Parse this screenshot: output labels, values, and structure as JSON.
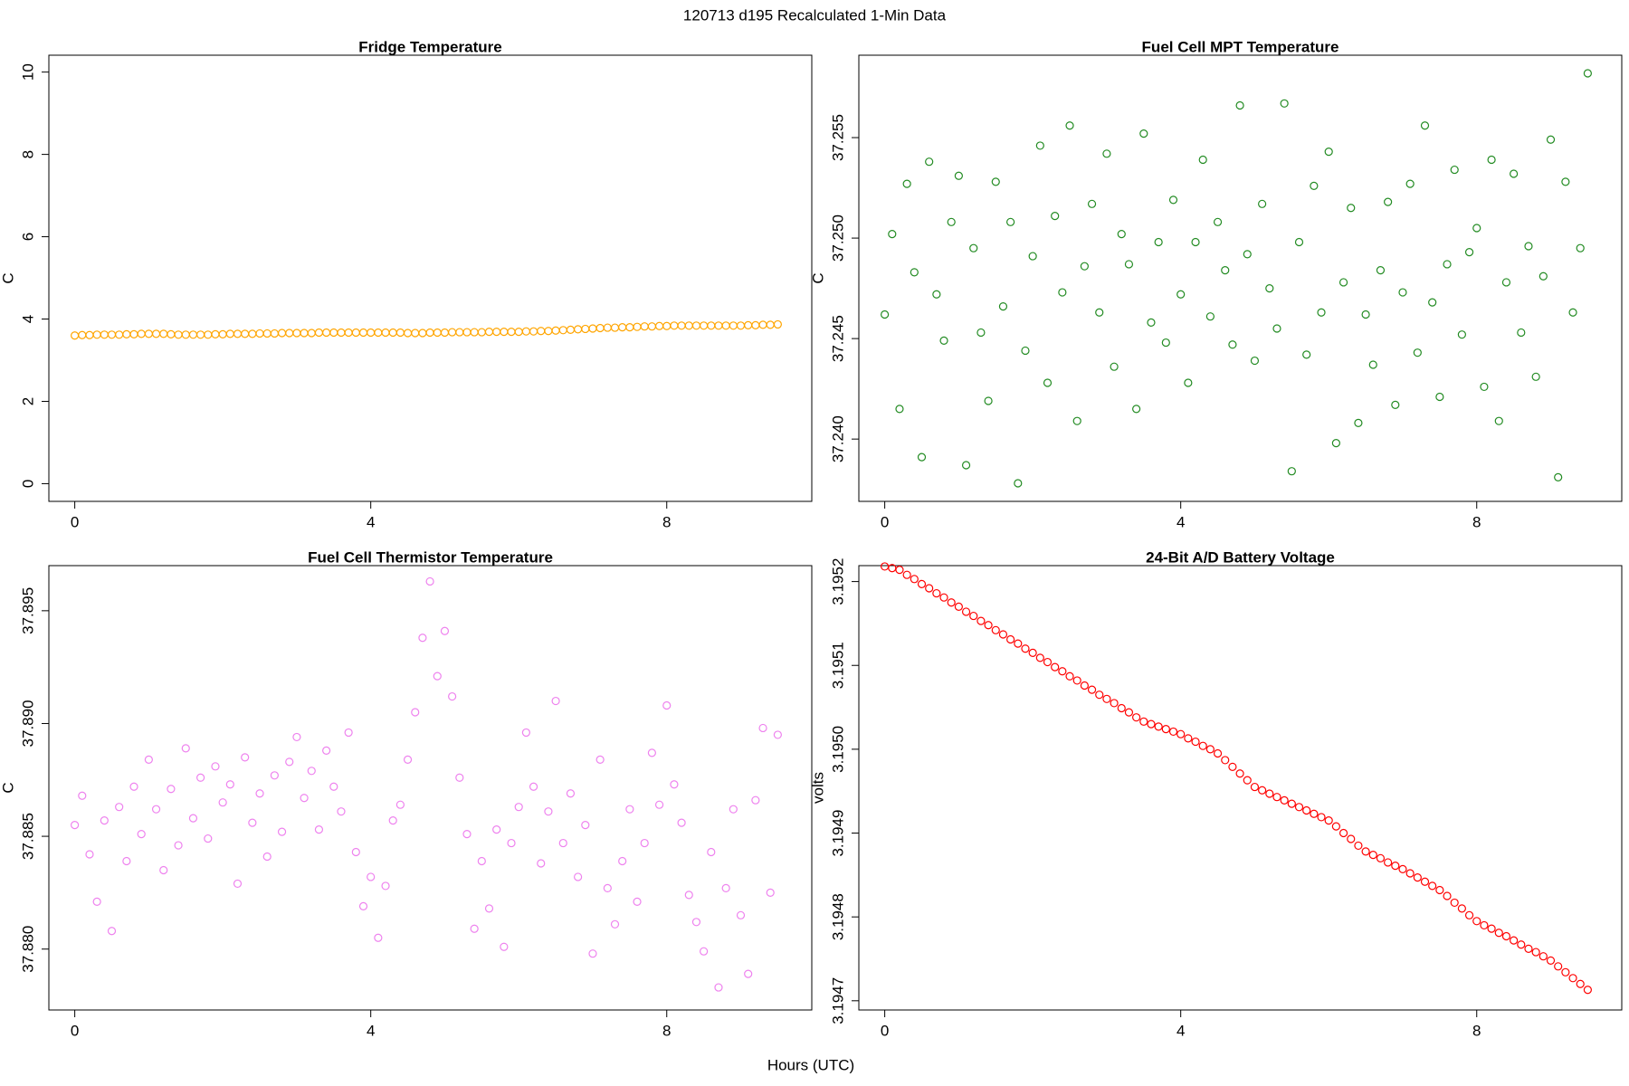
{
  "title": "120713   d195   Recalculated 1-Min Data",
  "xlabel": "Hours (UTC)",
  "chart_data": [
    {
      "type": "scatter",
      "title": "Fridge Temperature",
      "ylabel": "C",
      "color": "#FFA500",
      "xlim": [
        -0.35,
        9.96
      ],
      "ylim": [
        -0.43,
        10.41
      ],
      "xticks": [
        0,
        4,
        8
      ],
      "yticks": [
        0,
        2,
        4,
        6,
        8,
        10
      ],
      "x": [
        0,
        0.1,
        0.2,
        0.3,
        0.4,
        0.5,
        0.6,
        0.7,
        0.8,
        0.9,
        1,
        1.1,
        1.2,
        1.3,
        1.4,
        1.5,
        1.6,
        1.7,
        1.8,
        1.9,
        2,
        2.1,
        2.2,
        2.3,
        2.4,
        2.5,
        2.6,
        2.7,
        2.8,
        2.9,
        3,
        3.1,
        3.2,
        3.3,
        3.4,
        3.5,
        3.6,
        3.7,
        3.8,
        3.9,
        4,
        4.1,
        4.2,
        4.3,
        4.4,
        4.5,
        4.6,
        4.7,
        4.8,
        4.9,
        5,
        5.1,
        5.2,
        5.3,
        5.4,
        5.5,
        5.6,
        5.7,
        5.8,
        5.9,
        6,
        6.1,
        6.2,
        6.3,
        6.4,
        6.5,
        6.6,
        6.7,
        6.8,
        6.9,
        7,
        7.1,
        7.2,
        7.3,
        7.4,
        7.5,
        7.6,
        7.7,
        7.8,
        7.9,
        8,
        8.1,
        8.2,
        8.3,
        8.4,
        8.5,
        8.6,
        8.7,
        8.8,
        8.9,
        9,
        9.1,
        9.2,
        9.3,
        9.4,
        9.5
      ],
      "values": [
        3.6,
        3.61,
        3.61,
        3.62,
        3.62,
        3.62,
        3.62,
        3.63,
        3.63,
        3.64,
        3.64,
        3.64,
        3.64,
        3.63,
        3.62,
        3.62,
        3.62,
        3.62,
        3.62,
        3.63,
        3.63,
        3.64,
        3.64,
        3.64,
        3.64,
        3.65,
        3.65,
        3.65,
        3.66,
        3.66,
        3.66,
        3.66,
        3.66,
        3.67,
        3.67,
        3.67,
        3.67,
        3.67,
        3.67,
        3.67,
        3.67,
        3.67,
        3.67,
        3.67,
        3.67,
        3.66,
        3.66,
        3.66,
        3.67,
        3.67,
        3.67,
        3.68,
        3.68,
        3.68,
        3.68,
        3.68,
        3.69,
        3.69,
        3.69,
        3.69,
        3.69,
        3.7,
        3.7,
        3.71,
        3.71,
        3.72,
        3.73,
        3.74,
        3.75,
        3.76,
        3.77,
        3.78,
        3.79,
        3.79,
        3.8,
        3.8,
        3.81,
        3.82,
        3.82,
        3.83,
        3.83,
        3.84,
        3.84,
        3.84,
        3.84,
        3.84,
        3.84,
        3.84,
        3.84,
        3.84,
        3.84,
        3.85,
        3.85,
        3.86,
        3.86,
        3.87
      ]
    },
    {
      "type": "scatter",
      "title": "Fuel Cell MPT Temperature",
      "ylabel": "C",
      "color": "#228B22",
      "xlim": [
        -0.35,
        9.96
      ],
      "ylim": [
        37.2369,
        37.2591
      ],
      "xticks": [
        0,
        4,
        8
      ],
      "yticks": [
        {
          "value": 37.24,
          "label": "37.240"
        },
        37.245,
        {
          "value": 37.25,
          "label": "37.250"
        },
        37.255
      ],
      "x": [
        0,
        0.1,
        0.2,
        0.3,
        0.4,
        0.5,
        0.6,
        0.7,
        0.8,
        0.9,
        1,
        1.1,
        1.2,
        1.3,
        1.4,
        1.5,
        1.6,
        1.7,
        1.8,
        1.9,
        2,
        2.1,
        2.2,
        2.3,
        2.4,
        2.5,
        2.6,
        2.7,
        2.8,
        2.9,
        3,
        3.1,
        3.2,
        3.3,
        3.4,
        3.5,
        3.6,
        3.7,
        3.8,
        3.9,
        4,
        4.1,
        4.2,
        4.3,
        4.4,
        4.5,
        4.6,
        4.7,
        4.8,
        4.9,
        5,
        5.1,
        5.2,
        5.3,
        5.4,
        5.5,
        5.6,
        5.7,
        5.8,
        5.9,
        6,
        6.1,
        6.2,
        6.3,
        6.4,
        6.5,
        6.6,
        6.7,
        6.8,
        6.9,
        7,
        7.1,
        7.2,
        7.3,
        7.4,
        7.5,
        7.6,
        7.7,
        7.8,
        7.9,
        8,
        8.1,
        8.2,
        8.3,
        8.4,
        8.5,
        8.6,
        8.7,
        8.8,
        8.9,
        9,
        9.1,
        9.2,
        9.3,
        9.4,
        9.5
      ],
      "values": [
        37.2462,
        37.2502,
        37.2415,
        37.2527,
        37.2483,
        37.2391,
        37.2538,
        37.2472,
        37.2449,
        37.2508,
        37.2531,
        37.2387,
        37.2495,
        37.2453,
        37.2419,
        37.2528,
        37.2466,
        37.2508,
        37.2378,
        37.2444,
        37.2491,
        37.2546,
        37.2428,
        37.2511,
        37.2473,
        37.2556,
        37.2409,
        37.2486,
        37.2517,
        37.2463,
        37.2542,
        37.2436,
        37.2502,
        37.2487,
        37.2415,
        37.2552,
        37.2458,
        37.2498,
        37.2448,
        37.2519,
        37.2472,
        37.2428,
        37.2498,
        37.2539,
        37.2461,
        37.2508,
        37.2484,
        37.2447,
        37.2566,
        37.2492,
        37.2439,
        37.2517,
        37.2475,
        37.2455,
        37.2567,
        37.2384,
        37.2498,
        37.2442,
        37.2526,
        37.2463,
        37.2543,
        37.2398,
        37.2478,
        37.2515,
        37.2408,
        37.2462,
        37.2437,
        37.2484,
        37.2518,
        37.2417,
        37.2473,
        37.2527,
        37.2443,
        37.2556,
        37.2468,
        37.2421,
        37.2487,
        37.2534,
        37.2452,
        37.2493,
        37.2505,
        37.2426,
        37.2539,
        37.2409,
        37.2478,
        37.2532,
        37.2453,
        37.2496,
        37.2431,
        37.2481,
        37.2549,
        37.2381,
        37.2528,
        37.2463,
        37.2495,
        37.2582
      ]
    },
    {
      "type": "scatter",
      "title": "Fuel Cell Thermistor Temperature",
      "ylabel": "C",
      "color": "#EE82EE",
      "xlim": [
        -0.35,
        9.96
      ],
      "ylim": [
        37.8773,
        37.897
      ],
      "xticks": [
        0,
        4,
        8
      ],
      "yticks": [
        {
          "value": 37.88,
          "label": "37.880"
        },
        37.885,
        {
          "value": 37.89,
          "label": "37.890"
        },
        37.895
      ],
      "x": [
        0,
        0.1,
        0.2,
        0.3,
        0.4,
        0.5,
        0.6,
        0.7,
        0.8,
        0.9,
        1,
        1.1,
        1.2,
        1.3,
        1.4,
        1.5,
        1.6,
        1.7,
        1.8,
        1.9,
        2,
        2.1,
        2.2,
        2.3,
        2.4,
        2.5,
        2.6,
        2.7,
        2.8,
        2.9,
        3,
        3.1,
        3.2,
        3.3,
        3.4,
        3.5,
        3.6,
        3.7,
        3.8,
        3.9,
        4,
        4.1,
        4.2,
        4.3,
        4.4,
        4.5,
        4.6,
        4.7,
        4.8,
        4.9,
        5,
        5.1,
        5.2,
        5.3,
        5.4,
        5.5,
        5.6,
        5.7,
        5.8,
        5.9,
        6,
        6.1,
        6.2,
        6.3,
        6.4,
        6.5,
        6.6,
        6.7,
        6.8,
        6.9,
        7,
        7.1,
        7.2,
        7.3,
        7.4,
        7.5,
        7.6,
        7.7,
        7.8,
        7.9,
        8,
        8.1,
        8.2,
        8.3,
        8.4,
        8.5,
        8.6,
        8.7,
        8.8,
        8.9,
        9,
        9.1,
        9.2,
        9.3,
        9.4,
        9.5
      ],
      "values": [
        37.8855,
        37.8868,
        37.8842,
        37.8821,
        37.8857,
        37.8808,
        37.8863,
        37.8839,
        37.8872,
        37.8851,
        37.8884,
        37.8862,
        37.8835,
        37.8871,
        37.8846,
        37.8889,
        37.8858,
        37.8876,
        37.8849,
        37.8881,
        37.8865,
        37.8873,
        37.8829,
        37.8885,
        37.8856,
        37.8869,
        37.8841,
        37.8877,
        37.8852,
        37.8883,
        37.8894,
        37.8867,
        37.8879,
        37.8853,
        37.8888,
        37.8872,
        37.8861,
        37.8896,
        37.8843,
        37.8819,
        37.8832,
        37.8805,
        37.8828,
        37.8857,
        37.8864,
        37.8884,
        37.8905,
        37.8938,
        37.8963,
        37.8921,
        37.8941,
        37.8912,
        37.8876,
        37.8851,
        37.8809,
        37.8839,
        37.8818,
        37.8853,
        37.8801,
        37.8847,
        37.8863,
        37.8896,
        37.8872,
        37.8838,
        37.8861,
        37.891,
        37.8847,
        37.8869,
        37.8832,
        37.8855,
        37.8798,
        37.8884,
        37.8827,
        37.8811,
        37.8839,
        37.8862,
        37.8821,
        37.8847,
        37.8887,
        37.8864,
        37.8908,
        37.8873,
        37.8856,
        37.8824,
        37.8812,
        37.8799,
        37.8843,
        37.8783,
        37.8827,
        37.8862,
        37.8815,
        37.8789,
        37.8866,
        37.8898,
        37.8825,
        37.8895
      ]
    },
    {
      "type": "scatter",
      "title": "24-Bit A/D Battery Voltage",
      "ylabel": "volts",
      "color": "#FF0000",
      "xlim": [
        -0.35,
        9.96
      ],
      "ylim": [
        3.194689,
        3.195219
      ],
      "xticks": [
        0,
        4,
        8
      ],
      "yticks": [
        3.1947,
        3.1948,
        3.1949,
        {
          "value": 3.195,
          "label": "3.1950"
        },
        3.1951,
        3.1952
      ],
      "x": [
        0,
        0.1,
        0.2,
        0.3,
        0.4,
        0.5,
        0.6,
        0.7,
        0.8,
        0.9,
        1,
        1.1,
        1.2,
        1.3,
        1.4,
        1.5,
        1.6,
        1.7,
        1.8,
        1.9,
        2,
        2.1,
        2.2,
        2.3,
        2.4,
        2.5,
        2.6,
        2.7,
        2.8,
        2.9,
        3,
        3.1,
        3.2,
        3.3,
        3.4,
        3.5,
        3.6,
        3.7,
        3.8,
        3.9,
        4,
        4.1,
        4.2,
        4.3,
        4.4,
        4.5,
        4.6,
        4.7,
        4.8,
        4.9,
        5,
        5.1,
        5.2,
        5.3,
        5.4,
        5.5,
        5.6,
        5.7,
        5.8,
        5.9,
        6,
        6.1,
        6.2,
        6.3,
        6.4,
        6.5,
        6.6,
        6.7,
        6.8,
        6.9,
        7,
        7.1,
        7.2,
        7.3,
        7.4,
        7.5,
        7.6,
        7.7,
        7.8,
        7.9,
        8,
        8.1,
        8.2,
        8.3,
        8.4,
        8.5,
        8.6,
        8.7,
        8.8,
        8.9,
        9,
        9.1,
        9.2,
        9.3,
        9.4,
        9.5
      ],
      "values": [
        3.195218,
        3.195216,
        3.195214,
        3.195208,
        3.195203,
        3.195197,
        3.195192,
        3.195186,
        3.195181,
        3.195175,
        3.19517,
        3.195164,
        3.195159,
        3.195153,
        3.195148,
        3.195142,
        3.195137,
        3.195131,
        3.195126,
        3.19512,
        3.195115,
        3.195109,
        3.195104,
        3.195098,
        3.195093,
        3.195087,
        3.195082,
        3.195076,
        3.195071,
        3.195065,
        3.19506,
        3.195055,
        3.195049,
        3.195044,
        3.195038,
        3.195033,
        3.19503,
        3.195027,
        3.195024,
        3.195021,
        3.195018,
        3.195013,
        3.195009,
        3.195004,
        3.195,
        3.194995,
        3.194987,
        3.194979,
        3.194971,
        3.194963,
        3.194955,
        3.194951,
        3.194947,
        3.194943,
        3.194939,
        3.194935,
        3.194931,
        3.194927,
        3.194923,
        3.194919,
        3.194915,
        3.194908,
        3.1949,
        3.194893,
        3.194885,
        3.194878,
        3.194874,
        3.19487,
        3.194865,
        3.194861,
        3.194857,
        3.194852,
        3.194847,
        3.194842,
        3.194837,
        3.194832,
        3.194825,
        3.194817,
        3.19481,
        3.194802,
        3.194795,
        3.19479,
        3.194786,
        3.194781,
        3.194777,
        3.194772,
        3.194767,
        3.194762,
        3.194758,
        3.194753,
        3.194748,
        3.194741,
        3.194734,
        3.194727,
        3.19472,
        3.194713
      ]
    }
  ]
}
